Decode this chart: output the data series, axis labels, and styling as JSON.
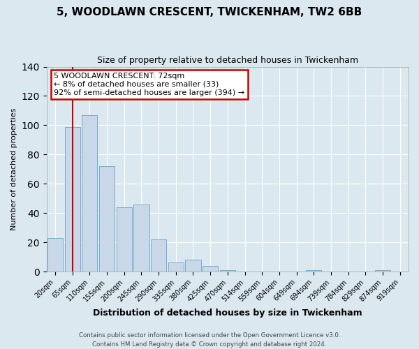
{
  "title": "5, WOODLAWN CRESCENT, TWICKENHAM, TW2 6BB",
  "subtitle": "Size of property relative to detached houses in Twickenham",
  "xlabel": "Distribution of detached houses by size in Twickenham",
  "ylabel": "Number of detached properties",
  "bin_labels": [
    "20sqm",
    "65sqm",
    "110sqm",
    "155sqm",
    "200sqm",
    "245sqm",
    "290sqm",
    "335sqm",
    "380sqm",
    "425sqm",
    "470sqm",
    "514sqm",
    "559sqm",
    "604sqm",
    "649sqm",
    "694sqm",
    "739sqm",
    "784sqm",
    "829sqm",
    "874sqm",
    "919sqm"
  ],
  "bar_values": [
    23,
    99,
    107,
    72,
    44,
    46,
    22,
    6,
    8,
    4,
    1,
    0,
    0,
    0,
    0,
    1,
    0,
    0,
    0,
    1,
    0
  ],
  "bar_color": "#c8d8e8",
  "bar_edgecolor": "#7aabcc",
  "ylim": [
    0,
    140
  ],
  "yticks": [
    0,
    20,
    40,
    60,
    80,
    100,
    120,
    140
  ],
  "property_line_color": "#cc0000",
  "annotation_text": "5 WOODLAWN CRESCENT: 72sqm\n← 8% of detached houses are smaller (33)\n92% of semi-detached houses are larger (394) →",
  "annotation_box_edgecolor": "#cc0000",
  "annotation_box_facecolor": "#ffffff",
  "background_color": "#dce8f0",
  "plot_bg_color": "#dce8f0",
  "grid_color": "#ffffff",
  "footer1": "Contains HM Land Registry data © Crown copyright and database right 2024.",
  "footer2": "Contains public sector information licensed under the Open Government Licence v3.0."
}
